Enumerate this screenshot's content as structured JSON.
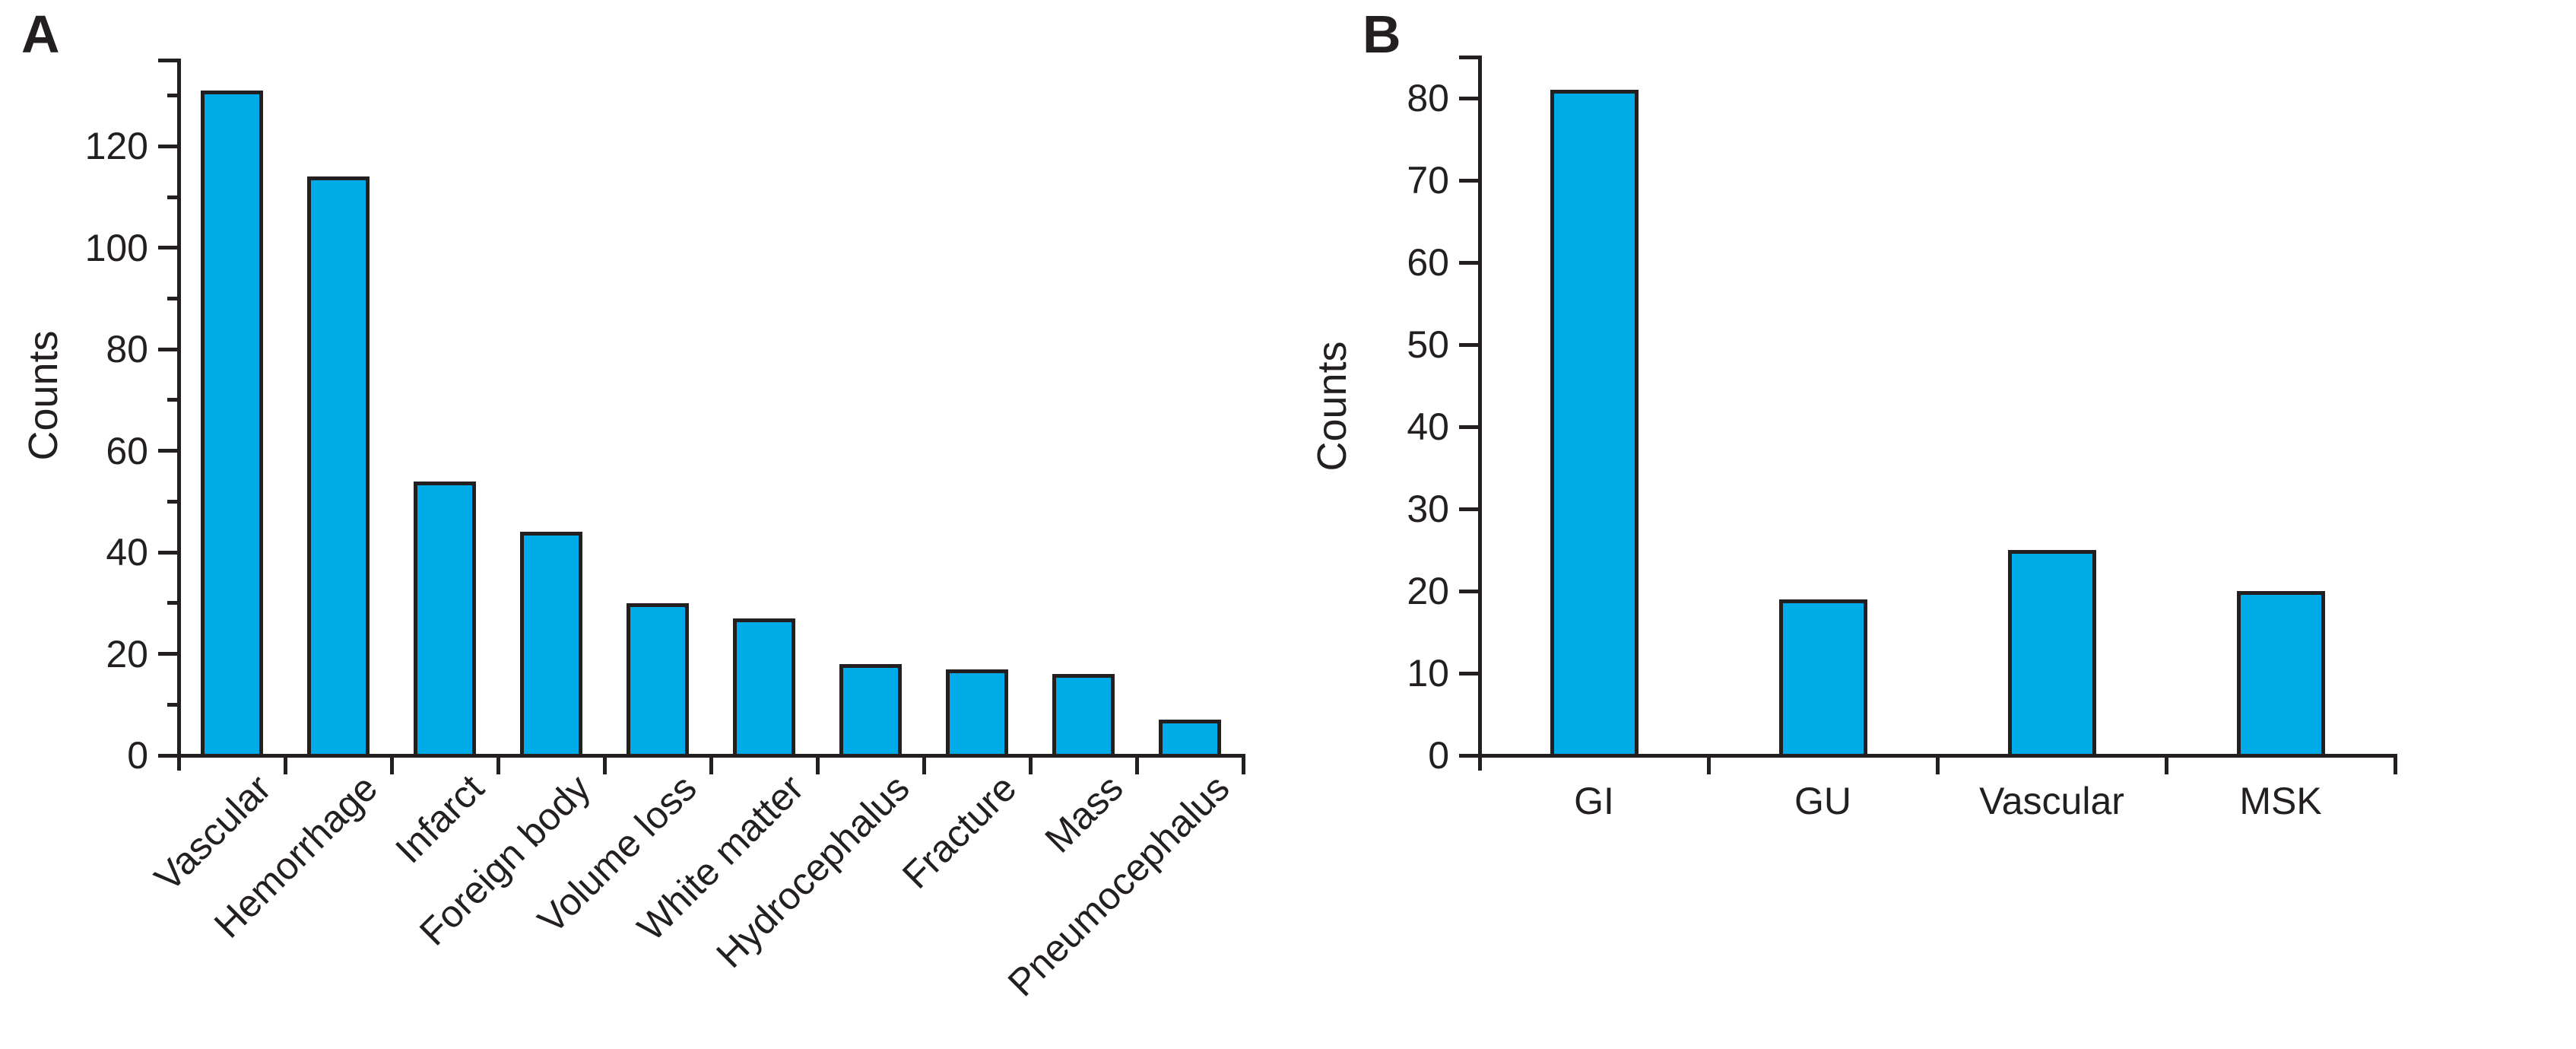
{
  "figure": {
    "panels": [
      {
        "label": "A",
        "ylabel": "Counts"
      },
      {
        "label": "B",
        "ylabel": "Counts"
      }
    ]
  },
  "colors": {
    "bar_fill": "#00ACE8",
    "bar_border": "#231F20",
    "axis": "#231F20",
    "background": "#FFFFFF"
  },
  "chart_data": [
    {
      "type": "bar",
      "panel_label": "A",
      "title": "",
      "xlabel": "",
      "ylabel": "Counts",
      "categories": [
        "Vascular",
        "Hemorrhage",
        "Infarct",
        "Foreign body",
        "Volume loss",
        "White matter",
        "Hydrocephalus",
        "Fracture",
        "Mass",
        "Pneumocephalus"
      ],
      "values": [
        131,
        114,
        54,
        44,
        30,
        27,
        18,
        17,
        16,
        7
      ],
      "ylim": [
        0,
        137
      ],
      "ytick_interval": 20,
      "minor_tick_interval": 10,
      "ytick_labels": [
        "0",
        "20",
        "40",
        "60",
        "80",
        "100",
        "120"
      ],
      "x_label_rotation_deg": -45,
      "grid": false,
      "legend": "none"
    },
    {
      "type": "bar",
      "panel_label": "B",
      "title": "",
      "xlabel": "",
      "ylabel": "Counts",
      "categories": [
        "GI",
        "GU",
        "Vascular",
        "MSK"
      ],
      "values": [
        81,
        19,
        25,
        20
      ],
      "ylim": [
        0,
        85
      ],
      "ytick_interval": 10,
      "minor_tick_interval": null,
      "ytick_labels": [
        "0",
        "10",
        "20",
        "30",
        "40",
        "50",
        "60",
        "70",
        "80"
      ],
      "x_label_rotation_deg": 0,
      "grid": false,
      "legend": "none"
    }
  ]
}
